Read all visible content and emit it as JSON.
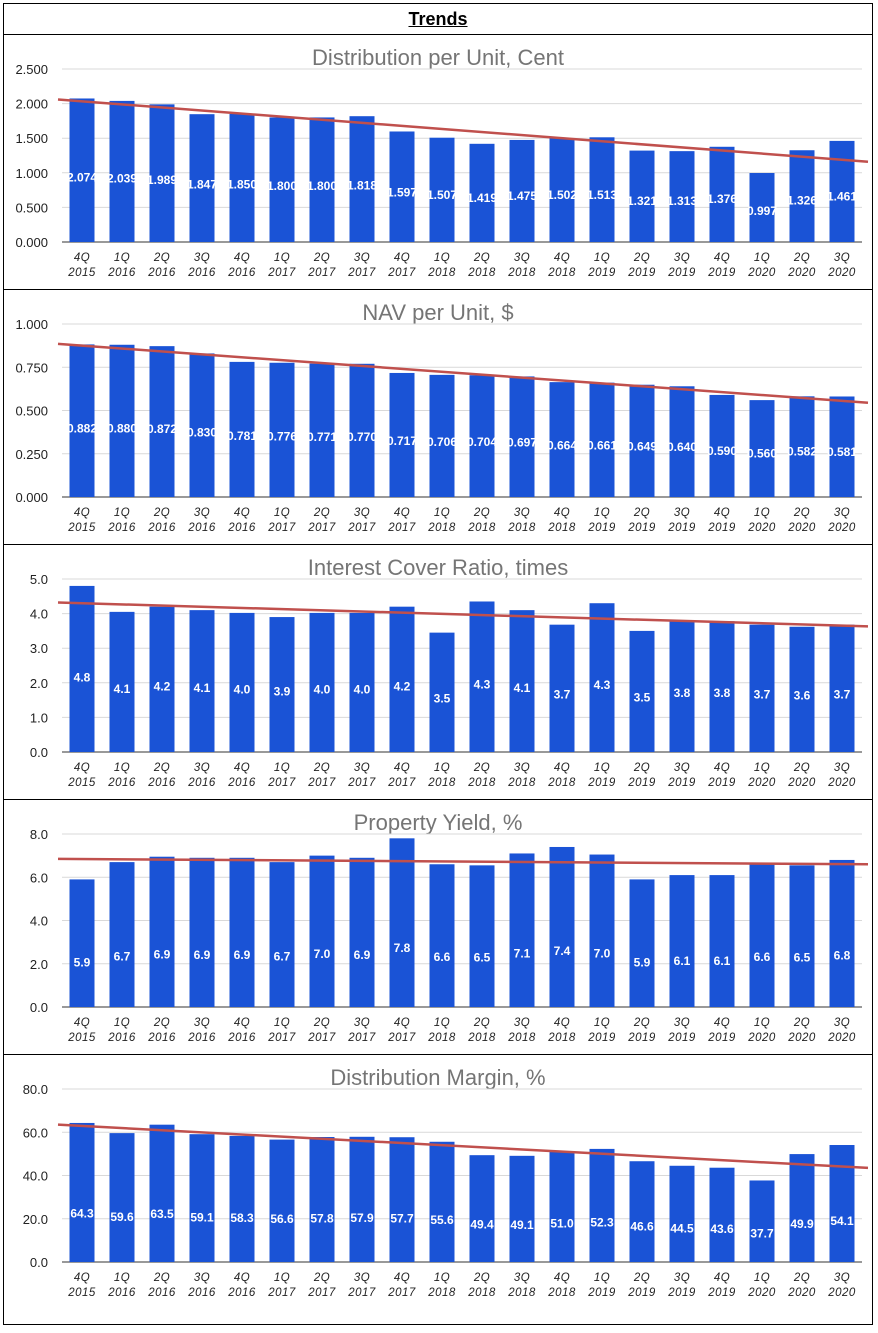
{
  "page": {
    "title": "Trends"
  },
  "colors": {
    "bar": "#1a53d6",
    "trend": "#c0504d",
    "title": "#757575"
  },
  "chart_data": [
    {
      "type": "bar",
      "title": "Distribution per Unit, Cent",
      "categories": [
        [
          "4Q",
          "2015"
        ],
        [
          "1Q",
          "2016"
        ],
        [
          "2Q",
          "2016"
        ],
        [
          "3Q",
          "2016"
        ],
        [
          "4Q",
          "2016"
        ],
        [
          "1Q",
          "2017"
        ],
        [
          "2Q",
          "2017"
        ],
        [
          "3Q",
          "2017"
        ],
        [
          "4Q",
          "2017"
        ],
        [
          "1Q",
          "2018"
        ],
        [
          "2Q",
          "2018"
        ],
        [
          "3Q",
          "2018"
        ],
        [
          "4Q",
          "2018"
        ],
        [
          "1Q",
          "2019"
        ],
        [
          "2Q",
          "2019"
        ],
        [
          "3Q",
          "2019"
        ],
        [
          "4Q",
          "2019"
        ],
        [
          "1Q",
          "2020"
        ],
        [
          "2Q",
          "2020"
        ],
        [
          "3Q",
          "2020"
        ]
      ],
      "values": [
        2.074,
        2.039,
        1.989,
        1.847,
        1.85,
        1.8,
        1.8,
        1.818,
        1.597,
        1.507,
        1.419,
        1.475,
        1.502,
        1.513,
        1.321,
        1.313,
        1.376,
        0.997,
        1.326,
        1.461
      ],
      "labels": [
        "2.074",
        "2.039",
        "1.989",
        "1.847",
        "1.850",
        "1.800",
        "1.800",
        "1.818",
        "1.597",
        "1.507",
        "1.419",
        "1.475",
        "1.502",
        "1.513",
        "1.321",
        "1.313",
        "1.376",
        "0.997",
        "1.326",
        "1.461"
      ],
      "yticks": [
        "0.000",
        "0.500",
        "1.000",
        "1.500",
        "2.000",
        "2.500"
      ],
      "ylim": [
        0,
        2.5
      ],
      "trendline": [
        2.06,
        1.16
      ],
      "label_pos": "middle"
    },
    {
      "type": "bar",
      "title": "NAV per Unit, $",
      "categories": [
        [
          "4Q",
          "2015"
        ],
        [
          "1Q",
          "2016"
        ],
        [
          "2Q",
          "2016"
        ],
        [
          "3Q",
          "2016"
        ],
        [
          "4Q",
          "2016"
        ],
        [
          "1Q",
          "2017"
        ],
        [
          "2Q",
          "2017"
        ],
        [
          "3Q",
          "2017"
        ],
        [
          "4Q",
          "2017"
        ],
        [
          "1Q",
          "2018"
        ],
        [
          "2Q",
          "2018"
        ],
        [
          "3Q",
          "2018"
        ],
        [
          "4Q",
          "2018"
        ],
        [
          "1Q",
          "2019"
        ],
        [
          "2Q",
          "2019"
        ],
        [
          "3Q",
          "2019"
        ],
        [
          "4Q",
          "2019"
        ],
        [
          "1Q",
          "2020"
        ],
        [
          "2Q",
          "2020"
        ],
        [
          "3Q",
          "2020"
        ]
      ],
      "values": [
        0.882,
        0.88,
        0.872,
        0.83,
        0.781,
        0.776,
        0.771,
        0.77,
        0.717,
        0.706,
        0.704,
        0.697,
        0.664,
        0.661,
        0.649,
        0.64,
        0.59,
        0.56,
        0.582,
        0.581
      ],
      "labels": [
        "0.882",
        "0.880",
        "0.872",
        "0.830",
        "0.781",
        "0.776",
        "0.771",
        "0.770",
        "0.717",
        "0.706",
        "0.704",
        "0.697",
        "0.664",
        "0.661",
        "0.649",
        "0.640",
        "0.590",
        "0.560",
        "0.582",
        "0.581"
      ],
      "yticks": [
        "0.000",
        "0.250",
        "0.500",
        "0.750",
        "1.000"
      ],
      "ylim": [
        0,
        1.0
      ],
      "trendline": [
        0.885,
        0.545
      ],
      "label_pos": "middle"
    },
    {
      "type": "bar",
      "title": "Interest Cover Ratio, times",
      "categories": [
        [
          "4Q",
          "2015"
        ],
        [
          "1Q",
          "2016"
        ],
        [
          "2Q",
          "2016"
        ],
        [
          "3Q",
          "2016"
        ],
        [
          "4Q",
          "2016"
        ],
        [
          "1Q",
          "2017"
        ],
        [
          "2Q",
          "2017"
        ],
        [
          "3Q",
          "2017"
        ],
        [
          "4Q",
          "2017"
        ],
        [
          "1Q",
          "2018"
        ],
        [
          "2Q",
          "2018"
        ],
        [
          "3Q",
          "2018"
        ],
        [
          "4Q",
          "2018"
        ],
        [
          "1Q",
          "2019"
        ],
        [
          "2Q",
          "2019"
        ],
        [
          "3Q",
          "2019"
        ],
        [
          "4Q",
          "2019"
        ],
        [
          "1Q",
          "2020"
        ],
        [
          "2Q",
          "2020"
        ],
        [
          "3Q",
          "2020"
        ]
      ],
      "values": [
        4.8,
        4.05,
        4.2,
        4.1,
        4.02,
        3.9,
        4.02,
        4.02,
        4.2,
        3.45,
        4.35,
        4.1,
        3.68,
        4.3,
        3.5,
        3.8,
        3.78,
        3.68,
        3.62,
        3.68
      ],
      "labels": [
        "4.8",
        "4.1",
        "4.2",
        "4.1",
        "4.0",
        "3.9",
        "4.0",
        "4.0",
        "4.2",
        "3.5",
        "4.3",
        "4.1",
        "3.7",
        "4.3",
        "3.5",
        "3.8",
        "3.8",
        "3.7",
        "3.6",
        "3.7"
      ],
      "yticks": [
        "0.0",
        "1.0",
        "2.0",
        "3.0",
        "4.0",
        "5.0"
      ],
      "ylim": [
        0,
        5.0
      ],
      "trendline": [
        4.32,
        3.63
      ],
      "label_pos": "middle"
    },
    {
      "type": "bar",
      "title": "Property Yield, %",
      "categories": [
        [
          "4Q",
          "2015"
        ],
        [
          "1Q",
          "2016"
        ],
        [
          "2Q",
          "2016"
        ],
        [
          "3Q",
          "2016"
        ],
        [
          "4Q",
          "2016"
        ],
        [
          "1Q",
          "2017"
        ],
        [
          "2Q",
          "2017"
        ],
        [
          "3Q",
          "2017"
        ],
        [
          "4Q",
          "2017"
        ],
        [
          "1Q",
          "2018"
        ],
        [
          "2Q",
          "2018"
        ],
        [
          "3Q",
          "2018"
        ],
        [
          "4Q",
          "2018"
        ],
        [
          "1Q",
          "2019"
        ],
        [
          "2Q",
          "2019"
        ],
        [
          "3Q",
          "2019"
        ],
        [
          "4Q",
          "2019"
        ],
        [
          "1Q",
          "2020"
        ],
        [
          "2Q",
          "2020"
        ],
        [
          "3Q",
          "2020"
        ]
      ],
      "values": [
        5.9,
        6.7,
        6.95,
        6.9,
        6.9,
        6.7,
        7.0,
        6.9,
        7.8,
        6.6,
        6.55,
        7.1,
        7.4,
        7.05,
        5.9,
        6.1,
        6.1,
        6.6,
        6.55,
        6.8
      ],
      "labels": [
        "5.9",
        "6.7",
        "6.9",
        "6.9",
        "6.9",
        "6.7",
        "7.0",
        "6.9",
        "7.8",
        "6.6",
        "6.5",
        "7.1",
        "7.4",
        "7.0",
        "5.9",
        "6.1",
        "6.1",
        "6.6",
        "6.5",
        "6.8"
      ],
      "yticks": [
        "0.0",
        "2.0",
        "4.0",
        "6.0",
        "8.0"
      ],
      "ylim": [
        0,
        8.0
      ],
      "trendline": [
        6.85,
        6.6
      ],
      "label_pos": "lower"
    },
    {
      "type": "bar",
      "title": "Distribution Margin, %",
      "categories": [
        [
          "4Q",
          "2015"
        ],
        [
          "1Q",
          "2016"
        ],
        [
          "2Q",
          "2016"
        ],
        [
          "3Q",
          "2016"
        ],
        [
          "4Q",
          "2016"
        ],
        [
          "1Q",
          "2017"
        ],
        [
          "2Q",
          "2017"
        ],
        [
          "3Q",
          "2017"
        ],
        [
          "4Q",
          "2017"
        ],
        [
          "1Q",
          "2018"
        ],
        [
          "2Q",
          "2018"
        ],
        [
          "3Q",
          "2018"
        ],
        [
          "4Q",
          "2018"
        ],
        [
          "1Q",
          "2019"
        ],
        [
          "2Q",
          "2019"
        ],
        [
          "3Q",
          "2019"
        ],
        [
          "4Q",
          "2019"
        ],
        [
          "1Q",
          "2020"
        ],
        [
          "2Q",
          "2020"
        ],
        [
          "3Q",
          "2020"
        ]
      ],
      "values": [
        64.3,
        59.6,
        63.5,
        59.1,
        58.3,
        56.6,
        57.8,
        57.9,
        57.7,
        55.6,
        49.4,
        49.1,
        51.0,
        52.3,
        46.6,
        44.5,
        43.6,
        37.7,
        49.9,
        54.1
      ],
      "labels": [
        "64.3",
        "59.6",
        "63.5",
        "59.1",
        "58.3",
        "56.6",
        "57.8",
        "57.9",
        "57.7",
        "55.6",
        "49.4",
        "49.1",
        "51.0",
        "52.3",
        "46.6",
        "44.5",
        "43.6",
        "37.7",
        "49.9",
        "54.1"
      ],
      "yticks": [
        "0.0",
        "20.0",
        "40.0",
        "60.0",
        "80.0"
      ],
      "ylim": [
        0,
        80.0
      ],
      "trendline": [
        63.5,
        43.5
      ],
      "label_pos": "lower"
    }
  ]
}
